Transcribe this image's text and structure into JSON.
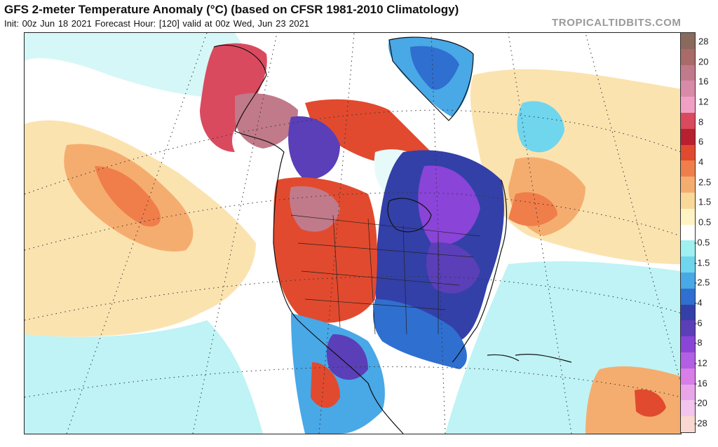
{
  "header": {
    "title": "GFS 2-meter Temperature Anomaly (°C) (based on CFSR 1981-2010 Climatology)",
    "subtitle": "Init: 00z Jun 18 2021   Forecast Hour: [120]   valid at 00z Wed, Jun 23 2021",
    "brand": "TROPICALTIDBITS.COM"
  },
  "map": {
    "region": "North America",
    "variable": "2-meter temperature anomaly"
  },
  "colorbar": {
    "labels": [
      "28",
      "20",
      "16",
      "12",
      "8",
      "6",
      "4",
      "2.5",
      "1.5",
      "0.5",
      "-0.5",
      "-1.5",
      "-2.5",
      "-4",
      "-6",
      "-8",
      "-12",
      "-16",
      "-20",
      "-28"
    ],
    "colors": [
      "#8a6a5c",
      "#a96a6a",
      "#c17a8a",
      "#d98aa8",
      "#f0a0c4",
      "#d94a5e",
      "#b8202f",
      "#e14a2e",
      "#f07e4a",
      "#f5ad6f",
      "#f9d99a",
      "#fff3c4",
      "#ffffff",
      "#9ff0f0",
      "#6fd6ee",
      "#49a8e6",
      "#2f6fd0",
      "#3340a8",
      "#5a3fb8",
      "#8a44d8",
      "#b25fe6",
      "#d77ee8",
      "#e8a6e8",
      "#f2c4ee",
      "#f8d8d0"
    ]
  }
}
